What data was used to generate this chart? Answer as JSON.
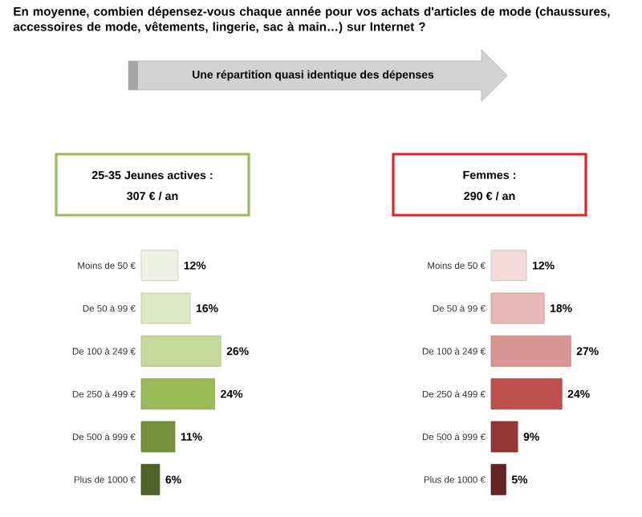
{
  "chart_data": [
    {
      "type": "other",
      "annotations": [
        "En moyenne, combien dépensez-vous chaque année pour vos achats d'articles de mode (chaussures, accessoires de mode, vêtements, lingerie, sac à main…) sur Internet ?",
        "Une répartition quasi identique des dépenses"
      ]
    },
    {
      "type": "bar",
      "orientation": "horizontal",
      "title": "25-35 Jeunes actives :",
      "subtitle": "307 € / an",
      "tick_labels": "y",
      "categories": [
        "Moins de 50 €",
        "De 50 à 99 €",
        "De 100 à 249 €",
        "De 250 à 499 €",
        "De 500 à 999 €",
        "Plus de 1000 €"
      ],
      "values": [
        12,
        16,
        26,
        24,
        11,
        6
      ],
      "value_labels": [
        "12%",
        "16%",
        "26%",
        "24%",
        "11%",
        "6%"
      ],
      "colors": [
        "#eef2e2",
        "#dde8c4",
        "#c4d99c",
        "#9bbb59",
        "#76923c",
        "#4f6228"
      ]
    },
    {
      "type": "bar",
      "orientation": "horizontal",
      "title": "Femmes :",
      "subtitle": "290 € / an",
      "tick_labels": "y",
      "categories": [
        "Moins de 50 €",
        "De 50 à 99 €",
        "De 100 à 249 €",
        "De 250 à 499 €",
        "De 500 à 999 €",
        "Plus de 1000 €"
      ],
      "values": [
        12,
        18,
        27,
        24,
        9,
        5
      ],
      "value_labels": [
        "12%",
        "18%",
        "27%",
        "24%",
        "9%",
        "5%"
      ],
      "colors": [
        "#f2dcdb",
        "#e6b9b8",
        "#d99694",
        "#c0504d",
        "#953735",
        "#632523"
      ]
    }
  ]
}
